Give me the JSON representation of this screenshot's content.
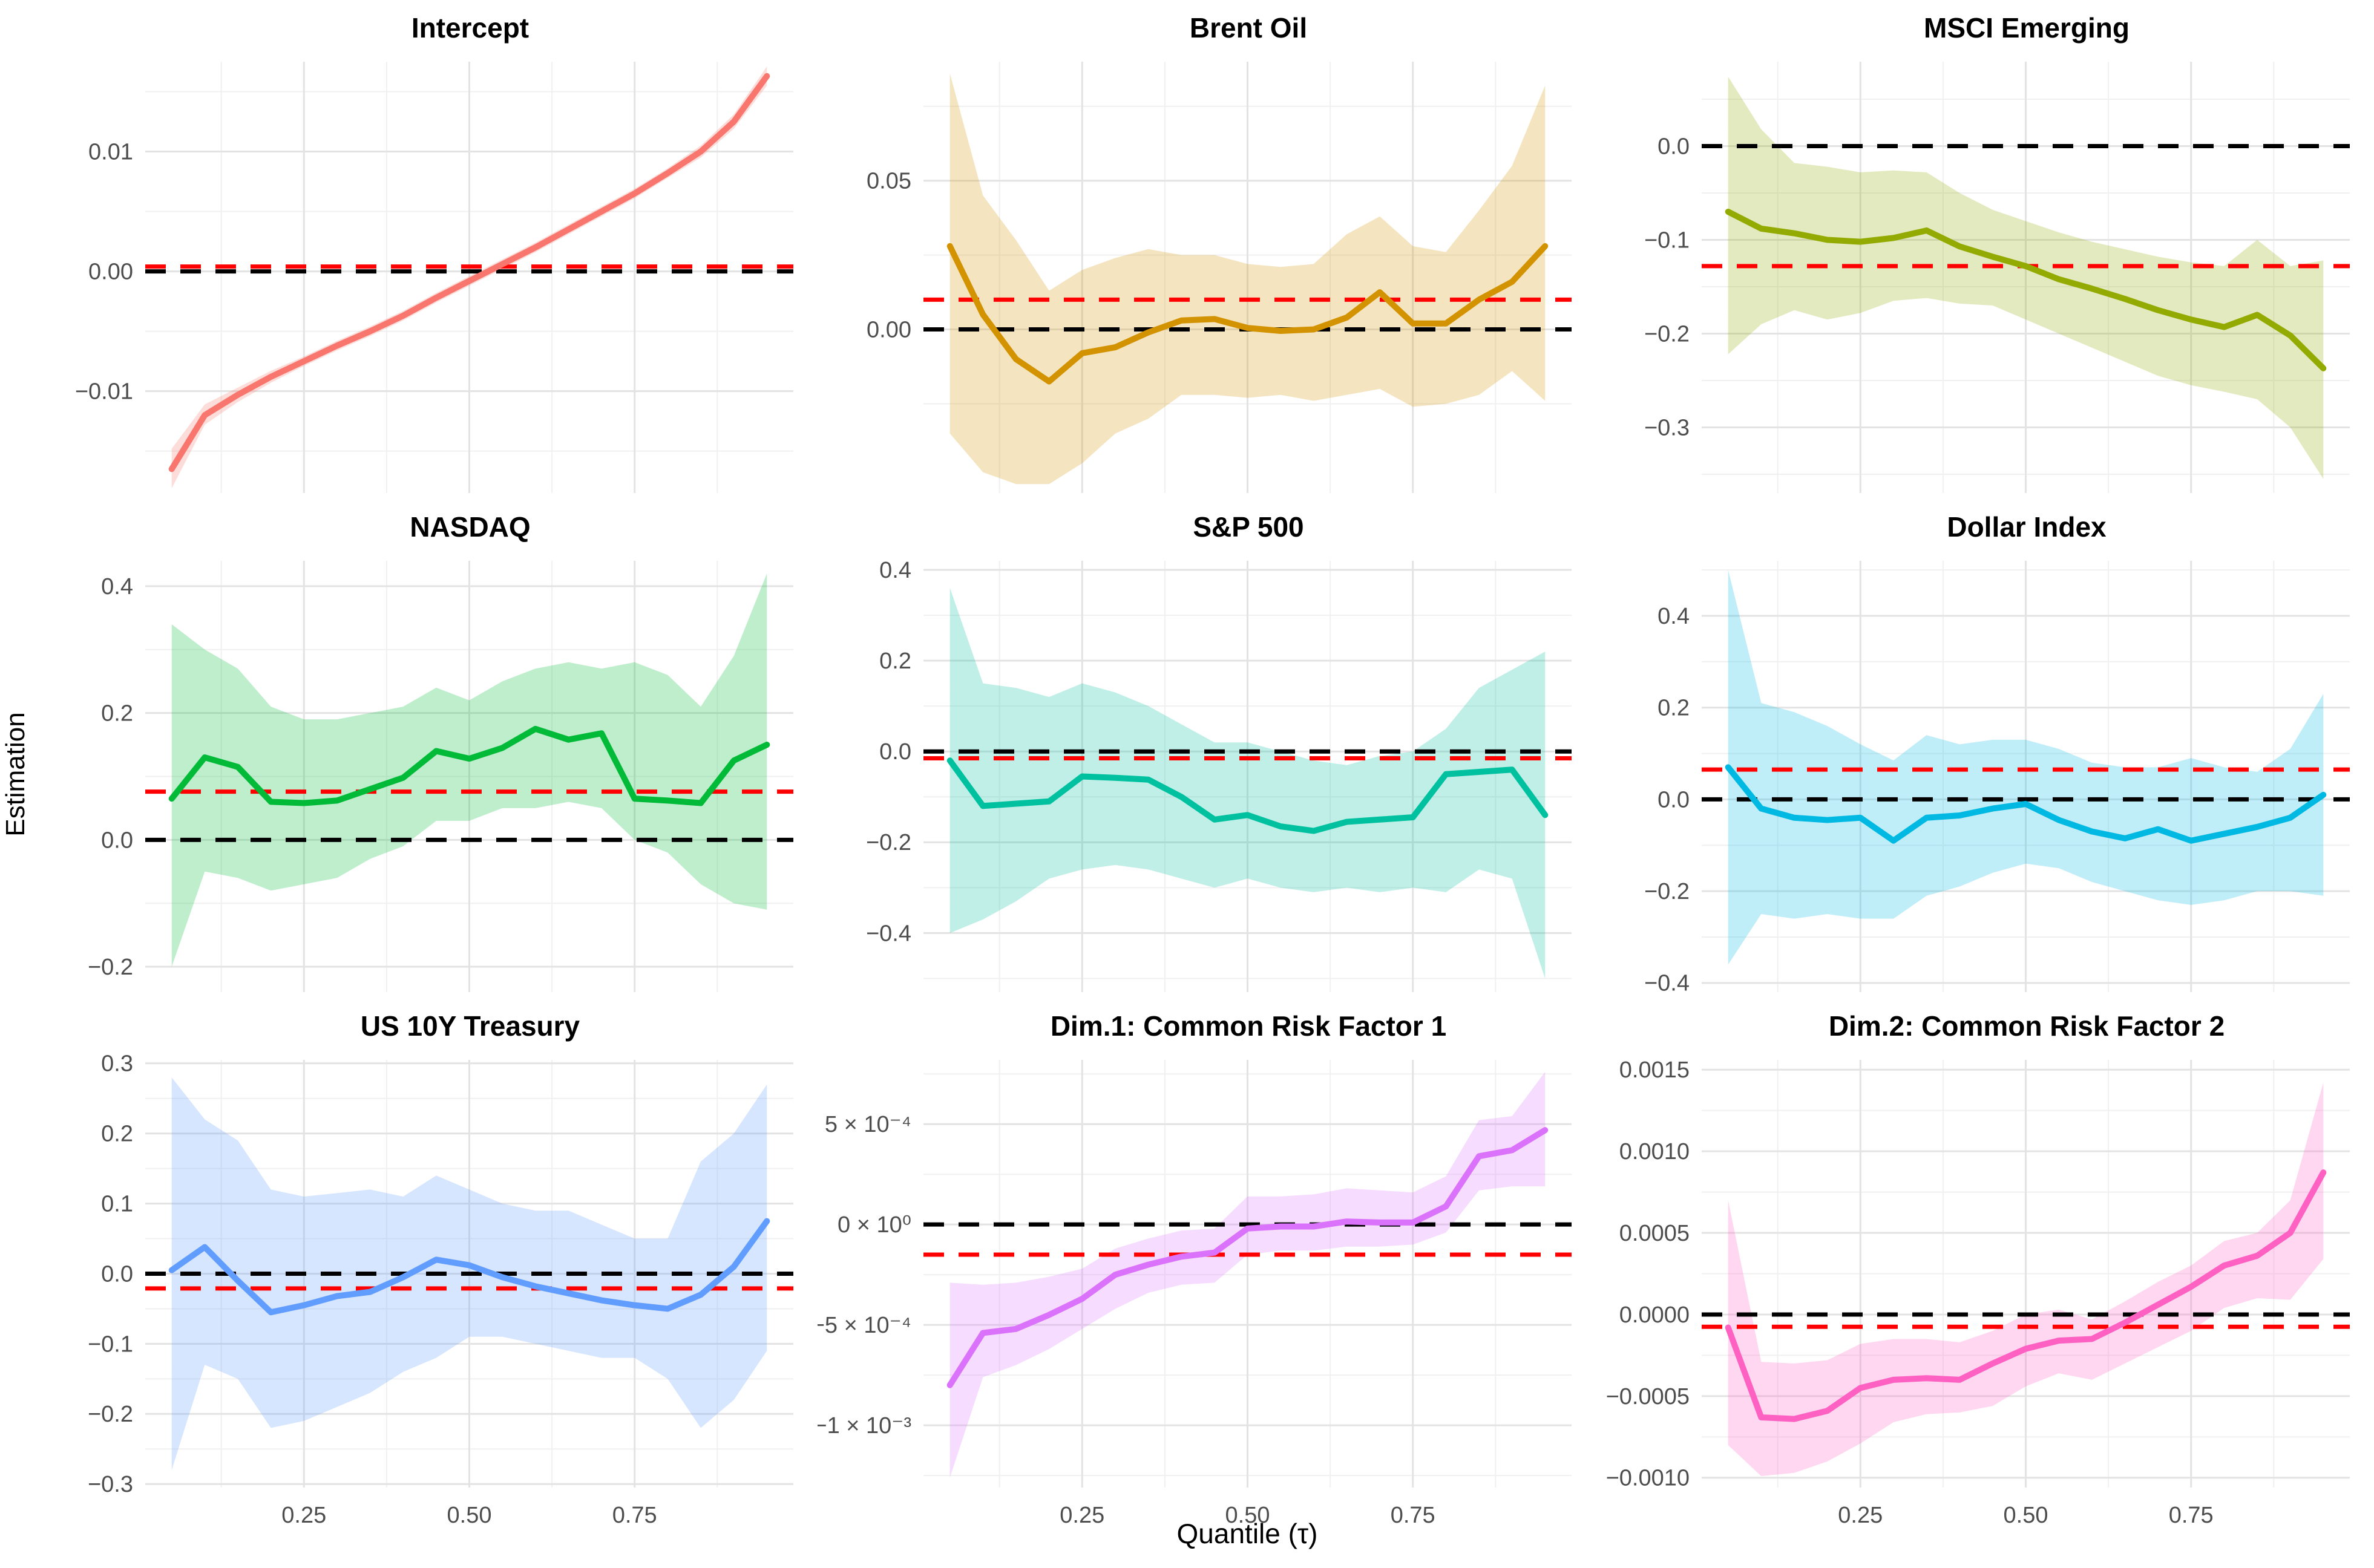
{
  "figure": {
    "xlabel": "Quantile (τ)",
    "ylabel": "Estimation"
  },
  "chart_data": {
    "type": "line",
    "description": "3x3 grid of quantile regression coefficient curves with confidence bands, a black dashed zero line and a red dashed OLS reference line per panel",
    "xlabel": "Quantile (τ)",
    "ylabel": "Estimation",
    "x": [
      0.05,
      0.1,
      0.15,
      0.2,
      0.25,
      0.3,
      0.35,
      0.4,
      0.45,
      0.5,
      0.55,
      0.6,
      0.65,
      0.7,
      0.75,
      0.8,
      0.85,
      0.9,
      0.95
    ],
    "xlim": [
      0.01,
      0.99
    ],
    "xticks": [
      0.25,
      0.5,
      0.75
    ],
    "xtick_labels": [
      "0.25",
      "0.50",
      "0.75"
    ],
    "x_minor_gridlines": [
      0.125,
      0.375,
      0.625,
      0.875
    ],
    "grid": true,
    "legend_position": "none",
    "band_opacity": 0.25,
    "zero_line": {
      "value": 0,
      "color": "#000000",
      "style": "dashed"
    },
    "ols_line_color": "#FF0000",
    "panels": [
      {
        "title": "Intercept",
        "color": "#F8766D",
        "ols": 0.0004,
        "ylim": [
          -0.0185,
          0.0175
        ],
        "yticks": [
          0.01,
          0,
          -0.01
        ],
        "ytick_labels": [
          "0.01",
          "0.00",
          "−0.01"
        ],
        "y": [
          -0.0165,
          -0.012,
          -0.0103,
          -0.0088,
          -0.0075,
          -0.0062,
          -0.005,
          -0.0037,
          -0.0022,
          -0.0008,
          0.0006,
          0.002,
          0.0035,
          0.005,
          0.0065,
          0.0082,
          0.01,
          0.0125,
          0.0163
        ],
        "upper": [
          -0.0148,
          -0.0111,
          -0.0097,
          -0.0083,
          -0.0071,
          -0.0058,
          -0.0046,
          -0.0033,
          -0.0018,
          -0.0004,
          0.001,
          0.0024,
          0.0039,
          0.0054,
          0.0069,
          0.0086,
          0.0105,
          0.0131,
          0.0171
        ],
        "lower": [
          -0.0181,
          -0.0128,
          -0.0109,
          -0.0093,
          -0.0079,
          -0.0066,
          -0.0054,
          -0.0041,
          -0.0026,
          -0.0012,
          0.0002,
          0.0016,
          0.0031,
          0.0046,
          0.0061,
          0.0078,
          0.0095,
          0.0119,
          0.0155
        ]
      },
      {
        "title": "Brent Oil",
        "color": "#D39200",
        "ols": 0.01,
        "ylim": [
          -0.055,
          0.09
        ],
        "yticks": [
          0.05,
          0
        ],
        "ytick_labels": [
          "0.05",
          "0.00"
        ],
        "y": [
          0.028,
          0.005,
          -0.01,
          -0.0175,
          -0.008,
          -0.006,
          -0.001,
          0.003,
          0.0035,
          0.0005,
          -0.0005,
          0.0,
          0.004,
          0.0125,
          0.002,
          0.002,
          0.01,
          0.016,
          0.028
        ],
        "upper": [
          0.086,
          0.045,
          0.03,
          0.013,
          0.02,
          0.024,
          0.027,
          0.025,
          0.025,
          0.022,
          0.021,
          0.022,
          0.032,
          0.038,
          0.028,
          0.026,
          0.04,
          0.055,
          0.082
        ],
        "lower": [
          -0.035,
          -0.048,
          -0.052,
          -0.052,
          -0.045,
          -0.035,
          -0.03,
          -0.022,
          -0.022,
          -0.023,
          -0.022,
          -0.024,
          -0.022,
          -0.02,
          -0.026,
          -0.025,
          -0.022,
          -0.014,
          -0.024
        ]
      },
      {
        "title": "MSCI Emerging",
        "color": "#93AA00",
        "ols": -0.128,
        "ylim": [
          -0.37,
          0.09
        ],
        "yticks": [
          0,
          -0.1,
          -0.2,
          -0.3
        ],
        "ytick_labels": [
          "0.0",
          "−0.1",
          "−0.2",
          "−0.3"
        ],
        "y": [
          -0.07,
          -0.088,
          -0.093,
          -0.1,
          -0.102,
          -0.098,
          -0.09,
          -0.107,
          -0.118,
          -0.128,
          -0.142,
          -0.152,
          -0.163,
          -0.175,
          -0.185,
          -0.193,
          -0.18,
          -0.202,
          -0.237
        ],
        "upper": [
          0.074,
          0.018,
          -0.018,
          -0.022,
          -0.028,
          -0.026,
          -0.028,
          -0.05,
          -0.068,
          -0.08,
          -0.092,
          -0.102,
          -0.11,
          -0.118,
          -0.124,
          -0.128,
          -0.1,
          -0.128,
          -0.122
        ],
        "lower": [
          -0.222,
          -0.19,
          -0.175,
          -0.185,
          -0.178,
          -0.165,
          -0.162,
          -0.168,
          -0.17,
          -0.185,
          -0.2,
          -0.215,
          -0.23,
          -0.245,
          -0.255,
          -0.262,
          -0.27,
          -0.3,
          -0.355
        ]
      },
      {
        "title": "NASDAQ",
        "color": "#00BA38",
        "ols": 0.076,
        "ylim": [
          -0.24,
          0.44
        ],
        "yticks": [
          0.4,
          0.2,
          0,
          -0.2
        ],
        "ytick_labels": [
          "0.4",
          "0.2",
          "0.0",
          "−0.2"
        ],
        "y": [
          0.065,
          0.13,
          0.115,
          0.06,
          0.058,
          0.062,
          0.08,
          0.098,
          0.14,
          0.128,
          0.145,
          0.175,
          0.158,
          0.168,
          0.065,
          0.062,
          0.058,
          0.125,
          0.15
        ],
        "upper": [
          0.34,
          0.3,
          0.27,
          0.21,
          0.19,
          0.19,
          0.2,
          0.21,
          0.24,
          0.22,
          0.25,
          0.27,
          0.28,
          0.27,
          0.28,
          0.26,
          0.21,
          0.29,
          0.42
        ],
        "lower": [
          -0.2,
          -0.05,
          -0.06,
          -0.08,
          -0.07,
          -0.06,
          -0.03,
          -0.01,
          0.03,
          0.03,
          0.05,
          0.05,
          0.06,
          0.05,
          0.0,
          -0.02,
          -0.07,
          -0.1,
          -0.11
        ]
      },
      {
        "title": "S&P 500",
        "color": "#00C19F",
        "ols": -0.015,
        "ylim": [
          -0.53,
          0.42
        ],
        "yticks": [
          0.4,
          0.2,
          0,
          -0.2,
          -0.4
        ],
        "ytick_labels": [
          "0.4",
          "0.2",
          "0.0",
          "−0.2",
          "−0.4"
        ],
        "y": [
          -0.02,
          -0.12,
          -0.115,
          -0.11,
          -0.055,
          -0.058,
          -0.062,
          -0.1,
          -0.15,
          -0.14,
          -0.165,
          -0.175,
          -0.155,
          -0.15,
          -0.145,
          -0.05,
          -0.045,
          -0.04,
          -0.14
        ],
        "upper": [
          0.36,
          0.15,
          0.14,
          0.12,
          0.15,
          0.13,
          0.1,
          0.06,
          0.02,
          0.02,
          0.0,
          -0.02,
          -0.03,
          -0.01,
          0.0,
          0.05,
          0.14,
          0.18,
          0.22
        ],
        "lower": [
          -0.4,
          -0.37,
          -0.33,
          -0.28,
          -0.26,
          -0.25,
          -0.26,
          -0.28,
          -0.3,
          -0.28,
          -0.3,
          -0.31,
          -0.3,
          -0.31,
          -0.3,
          -0.31,
          -0.26,
          -0.28,
          -0.5
        ]
      },
      {
        "title": "Dollar Index",
        "color": "#00B9E3",
        "ols": 0.065,
        "ylim": [
          -0.42,
          0.52
        ],
        "yticks": [
          0.4,
          0.2,
          0,
          -0.2,
          -0.4
        ],
        "ytick_labels": [
          "0.4",
          "0.2",
          "0.0",
          "−0.2",
          "−0.4"
        ],
        "y": [
          0.07,
          -0.02,
          -0.04,
          -0.045,
          -0.04,
          -0.09,
          -0.04,
          -0.035,
          -0.02,
          -0.01,
          -0.045,
          -0.07,
          -0.085,
          -0.065,
          -0.09,
          -0.075,
          -0.06,
          -0.04,
          0.01
        ],
        "upper": [
          0.5,
          0.21,
          0.19,
          0.16,
          0.12,
          0.085,
          0.14,
          0.12,
          0.13,
          0.13,
          0.11,
          0.08,
          0.07,
          0.07,
          0.09,
          0.07,
          0.06,
          0.11,
          0.23
        ],
        "lower": [
          -0.36,
          -0.25,
          -0.26,
          -0.25,
          -0.26,
          -0.26,
          -0.21,
          -0.19,
          -0.16,
          -0.14,
          -0.15,
          -0.18,
          -0.2,
          -0.22,
          -0.23,
          -0.22,
          -0.2,
          -0.2,
          -0.21
        ]
      },
      {
        "title": "US 10Y Treasury",
        "color": "#619CFF",
        "ols": -0.021,
        "ylim": [
          -0.305,
          0.305
        ],
        "yticks": [
          0.3,
          0.2,
          0.1,
          0,
          -0.1,
          -0.2,
          -0.3
        ],
        "ytick_labels": [
          "0.3",
          "0.2",
          "0.1",
          "0.0",
          "−0.1",
          "−0.2",
          "−0.3"
        ],
        "y": [
          0.005,
          0.038,
          -0.01,
          -0.055,
          -0.045,
          -0.032,
          -0.026,
          -0.005,
          0.02,
          0.012,
          -0.005,
          -0.018,
          -0.028,
          -0.038,
          -0.045,
          -0.05,
          -0.03,
          0.01,
          0.075
        ],
        "upper": [
          0.28,
          0.22,
          0.19,
          0.12,
          0.11,
          0.115,
          0.12,
          0.11,
          0.14,
          0.12,
          0.1,
          0.09,
          0.09,
          0.07,
          0.05,
          0.05,
          0.16,
          0.2,
          0.27
        ],
        "lower": [
          -0.28,
          -0.13,
          -0.15,
          -0.22,
          -0.21,
          -0.19,
          -0.17,
          -0.14,
          -0.12,
          -0.09,
          -0.09,
          -0.1,
          -0.11,
          -0.12,
          -0.12,
          -0.15,
          -0.22,
          -0.18,
          -0.11
        ]
      },
      {
        "title": "Dim.1: Common Risk Factor 1",
        "color": "#DB72FB",
        "ols": -0.00015,
        "ylim": [
          -0.00131,
          0.00082
        ],
        "yticks": [
          0.0005,
          0,
          -0.0005,
          -0.001
        ],
        "ytick_labels": [
          "5 × 10⁻⁴",
          "0 × 10⁰",
          "−5 × 10⁻⁴",
          "−1 × 10⁻³"
        ],
        "y": [
          -0.0008,
          -0.00054,
          -0.00052,
          -0.00045,
          -0.00037,
          -0.00025,
          -0.0002,
          -0.00016,
          -0.00014,
          -2e-05,
          -1e-05,
          -1e-05,
          1.5e-05,
          1e-05,
          1e-05,
          9e-05,
          0.00034,
          0.00037,
          0.00047
        ],
        "upper": [
          -0.00029,
          -0.0003,
          -0.00029,
          -0.00026,
          -0.00022,
          -0.00012,
          -7e-05,
          -3e-05,
          -2e-05,
          0.00014,
          0.00014,
          0.00015,
          0.00018,
          0.00017,
          0.00016,
          0.00024,
          0.00052,
          0.00054,
          0.00076
        ],
        "lower": [
          -0.00126,
          -0.00076,
          -0.0007,
          -0.00062,
          -0.00052,
          -0.00042,
          -0.00034,
          -0.0003,
          -0.00029,
          -0.00015,
          -0.00013,
          -0.00013,
          -0.00011,
          -0.00011,
          -0.0001,
          -4e-05,
          0.00017,
          0.00019,
          0.00019
        ]
      },
      {
        "title": "Dim.2: Common Risk Factor 2",
        "color": "#FF61C3",
        "ols": -7.5e-05,
        "ylim": [
          -0.00106,
          0.00156
        ],
        "yticks": [
          0.0015,
          0.001,
          0.0005,
          0,
          -0.0005,
          -0.001
        ],
        "ytick_labels": [
          "0.0015",
          "0.0010",
          "0.0005",
          "0.0000",
          "−0.0005",
          "−0.0010"
        ],
        "y": [
          -8e-05,
          -0.00063,
          -0.00064,
          -0.00059,
          -0.00045,
          -0.0004,
          -0.00039,
          -0.0004,
          -0.0003,
          -0.00021,
          -0.00016,
          -0.00015,
          -5e-05,
          6e-05,
          0.00017,
          0.0003,
          0.00036,
          0.0005,
          0.00087
        ],
        "upper": [
          0.0007,
          -0.00029,
          -0.0003,
          -0.00028,
          -0.00018,
          -0.00015,
          -0.00015,
          -0.00017,
          -0.0001,
          0.0,
          3e-05,
          -3e-05,
          8e-05,
          0.0002,
          0.0003,
          0.00045,
          0.0005,
          0.0007,
          0.00142
        ],
        "lower": [
          -0.0008,
          -0.00099,
          -0.00097,
          -0.0009,
          -0.00079,
          -0.00066,
          -0.00061,
          -0.0006,
          -0.00056,
          -0.00044,
          -0.00036,
          -0.0004,
          -0.0003,
          -0.0002,
          -0.0001,
          4e-05,
          0.0001,
          9e-05,
          0.00034
        ]
      }
    ]
  }
}
